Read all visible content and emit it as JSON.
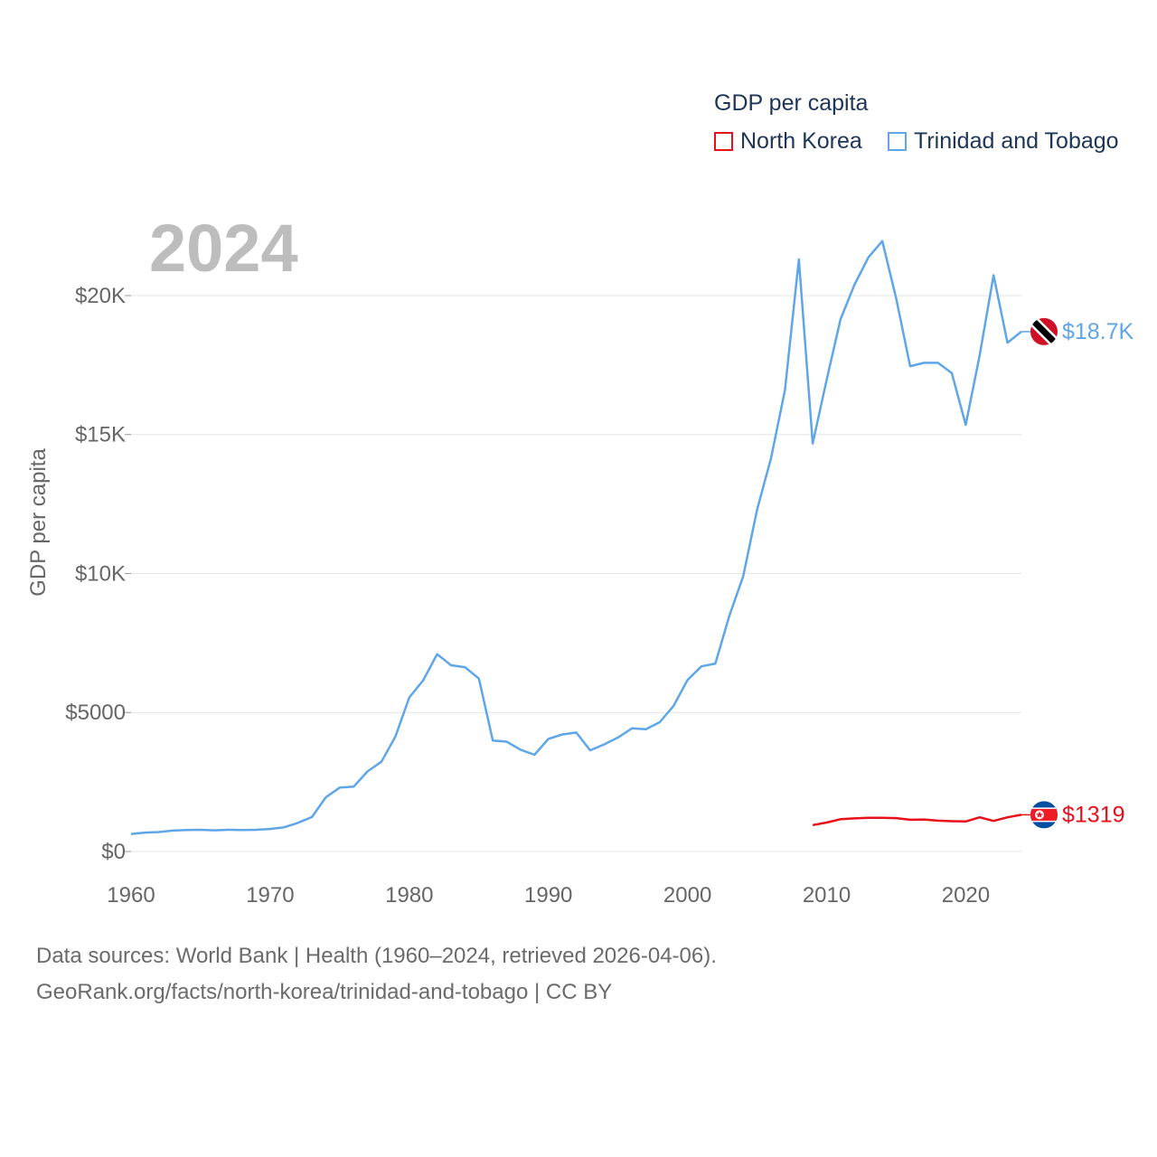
{
  "chart_data": {
    "type": "line",
    "year_label": "2024",
    "ylabel": "GDP per capita",
    "xlabel": "",
    "legend_title": "GDP per capita",
    "legend_position": "top-right",
    "xlim": [
      1960,
      2024
    ],
    "ylim": [
      0,
      22600
    ],
    "x_ticks": [
      1960,
      1970,
      1980,
      1990,
      2000,
      2010,
      2020
    ],
    "x_tick_labels": [
      "1960",
      "1970",
      "1980",
      "1990",
      "2000",
      "2010",
      "2020"
    ],
    "y_ticks": [
      0,
      5000,
      10000,
      15000,
      20000
    ],
    "y_tick_labels": [
      "$0",
      "$5000",
      "$10K",
      "$15K",
      "$20K"
    ],
    "grid": true,
    "series": [
      {
        "name": "North Korea",
        "color": "#e8101a",
        "flag_icon": "north-korea-flag-icon",
        "end_label": "$1319",
        "x": [
          2009,
          2010,
          2011,
          2012,
          2013,
          2014,
          2015,
          2016,
          2017,
          2018,
          2019,
          2020,
          2021,
          2022,
          2023,
          2024
        ],
        "values": [
          950,
          1040,
          1160,
          1190,
          1210,
          1210,
          1200,
          1140,
          1150,
          1110,
          1090,
          1080,
          1230,
          1100,
          1230,
          1319
        ]
      },
      {
        "name": "Trinidad and Tobago",
        "color": "#5fa6e8",
        "flag_icon": "trinidad-and-tobago-flag-icon",
        "end_label": "$18.7K",
        "x": [
          1960,
          1961,
          1962,
          1963,
          1964,
          1965,
          1966,
          1967,
          1968,
          1969,
          1970,
          1971,
          1972,
          1973,
          1974,
          1975,
          1976,
          1977,
          1978,
          1979,
          1980,
          1981,
          1982,
          1983,
          1984,
          1985,
          1986,
          1987,
          1988,
          1989,
          1990,
          1991,
          1992,
          1993,
          1994,
          1995,
          1996,
          1997,
          1998,
          1999,
          2000,
          2001,
          2002,
          2003,
          2004,
          2005,
          2006,
          2007,
          2008,
          2009,
          2010,
          2011,
          2012,
          2013,
          2014,
          2015,
          2016,
          2017,
          2018,
          2019,
          2020,
          2021,
          2022,
          2023,
          2024
        ],
        "values": [
          630,
          680,
          700,
          750,
          770,
          780,
          760,
          780,
          770,
          780,
          810,
          870,
          1030,
          1240,
          1950,
          2300,
          2330,
          2880,
          3230,
          4130,
          5540,
          6160,
          7100,
          6700,
          6630,
          6220,
          3990,
          3950,
          3660,
          3480,
          4050,
          4210,
          4280,
          3640,
          3850,
          4100,
          4430,
          4400,
          4650,
          5240,
          6170,
          6660,
          6760,
          8470,
          9900,
          12300,
          14150,
          16600,
          21300,
          14680,
          16960,
          19150,
          20390,
          21370,
          21960,
          19890,
          17460,
          17580,
          17580,
          17210,
          15350,
          17850,
          20730,
          18300,
          18700
        ]
      }
    ]
  },
  "footer": {
    "line1": "Data sources: World Bank | Health (1960–2024, retrieved 2026-04-06).",
    "line2": "GeoRank.org/facts/north-korea/trinidad-and-tobago | CC BY"
  }
}
